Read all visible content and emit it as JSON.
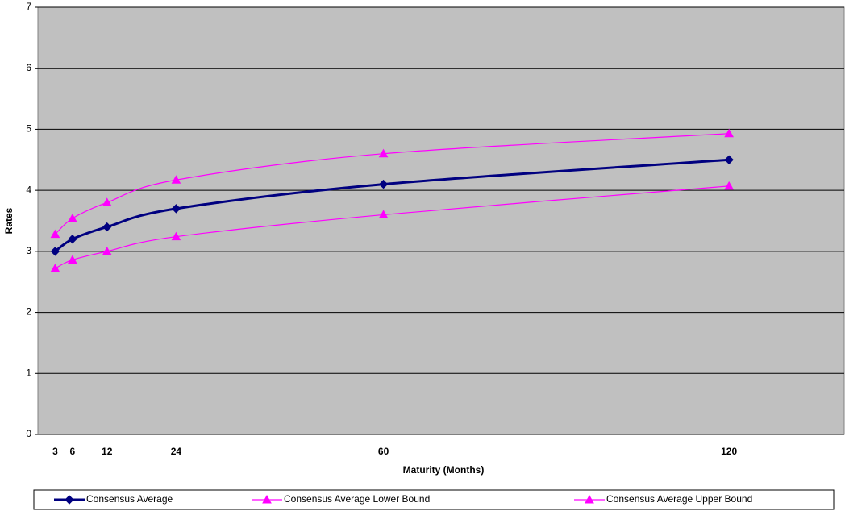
{
  "chart_data": {
    "type": "line",
    "x_label": "Maturity (Months)",
    "y_label": "Rates",
    "x": [
      3,
      6,
      12,
      24,
      60,
      120
    ],
    "series": [
      {
        "name": "Consensus Average",
        "color": "#000080",
        "marker": "diamond",
        "values": [
          3.0,
          3.2,
          3.4,
          3.7,
          4.1,
          4.5
        ]
      },
      {
        "name": "Consensus Average Lower Bound",
        "color": "#ff00ff",
        "marker": "triangle",
        "values": [
          2.72,
          2.86,
          3.0,
          3.24,
          3.6,
          4.07
        ]
      },
      {
        "name": "Consensus Average Upper Bound",
        "color": "#ff00ff",
        "marker": "triangle",
        "values": [
          3.28,
          3.54,
          3.8,
          4.17,
          4.6,
          4.93
        ]
      }
    ],
    "xlim": [
      0,
      140
    ],
    "xticks": [
      3,
      6,
      12,
      24,
      60,
      120
    ],
    "ylim": [
      0,
      7
    ],
    "yticks": [
      0,
      1,
      2,
      3,
      4,
      5,
      6,
      7
    ],
    "grid": true,
    "legend": "bottom",
    "plot_background": "#c0c0c0"
  }
}
